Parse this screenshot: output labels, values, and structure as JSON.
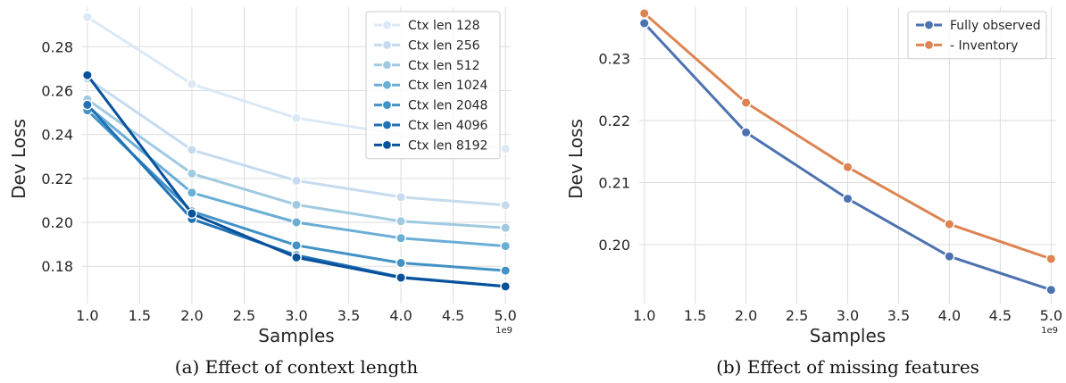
{
  "chart_data": [
    {
      "type": "line",
      "caption": "(a) Effect of context length",
      "xlabel": "Samples",
      "ylabel": "Dev Loss",
      "x_offset_label": "1e9",
      "x": [
        1.0,
        2.0,
        3.0,
        4.0,
        5.0
      ],
      "xlim": [
        0.95,
        5.05
      ],
      "ylim": [
        0.163,
        0.298
      ],
      "xticks": [
        1.0,
        1.5,
        2.0,
        2.5,
        3.0,
        3.5,
        4.0,
        4.5,
        5.0
      ],
      "xtick_labels": [
        "1.0",
        "1.5",
        "2.0",
        "2.5",
        "3.0",
        "3.5",
        "4.0",
        "4.5",
        "5.0"
      ],
      "yticks": [
        0.18,
        0.2,
        0.22,
        0.24,
        0.26,
        0.28
      ],
      "ytick_labels": [
        "0.18",
        "0.20",
        "0.22",
        "0.24",
        "0.26",
        "0.28"
      ],
      "grid": true,
      "legend_position": "top-right",
      "series": [
        {
          "name": "Ctx len 128",
          "color": "#dbe9f6",
          "values": [
            0.2935,
            0.263,
            0.2475,
            0.24,
            0.2335
          ]
        },
        {
          "name": "Ctx len 256",
          "color": "#c6dbef",
          "values": [
            0.2655,
            0.233,
            0.219,
            0.2115,
            0.2078
          ]
        },
        {
          "name": "Ctx len 512",
          "color": "#a0cae1",
          "values": [
            0.256,
            0.2222,
            0.208,
            0.2005,
            0.1975
          ]
        },
        {
          "name": "Ctx len 1024",
          "color": "#6aaed6",
          "values": [
            0.253,
            0.2135,
            0.2,
            0.1928,
            0.1892
          ]
        },
        {
          "name": "Ctx len 2048",
          "color": "#4292c6",
          "values": [
            0.251,
            0.205,
            0.1895,
            0.1815,
            0.178
          ]
        },
        {
          "name": "Ctx len 4096",
          "color": "#2171b5",
          "values": [
            0.2535,
            0.2015,
            0.185,
            0.175,
            0.1708
          ]
        },
        {
          "name": "Ctx len 8192",
          "color": "#08519c",
          "values": [
            0.267,
            0.204,
            0.184,
            0.1748,
            0.1708
          ]
        }
      ]
    },
    {
      "type": "line",
      "caption": "(b) Effect of missing features",
      "xlabel": "Samples",
      "ylabel": "Dev Loss",
      "x_offset_label": "1e9",
      "x": [
        1.0,
        2.0,
        3.0,
        4.0,
        5.0
      ],
      "xlim": [
        0.95,
        5.05
      ],
      "ylim": [
        0.1905,
        0.2383
      ],
      "xticks": [
        1.0,
        1.5,
        2.0,
        2.5,
        3.0,
        3.5,
        4.0,
        4.5,
        5.0
      ],
      "xtick_labels": [
        "1.0",
        "1.5",
        "2.0",
        "2.5",
        "3.0",
        "3.5",
        "4.0",
        "4.5",
        "5.0"
      ],
      "yticks": [
        0.2,
        0.21,
        0.22,
        0.23
      ],
      "ytick_labels": [
        "0.20",
        "0.21",
        "0.22",
        "0.23"
      ],
      "grid": true,
      "legend_position": "top-right",
      "series": [
        {
          "name": "Fully observed",
          "color": "#4c72b0",
          "values": [
            0.2357,
            0.2181,
            0.2074,
            0.1981,
            0.1927
          ]
        },
        {
          "name": "- Inventory",
          "color": "#dd8452",
          "values": [
            0.2373,
            0.2229,
            0.2125,
            0.2033,
            0.1977
          ]
        }
      ]
    }
  ]
}
